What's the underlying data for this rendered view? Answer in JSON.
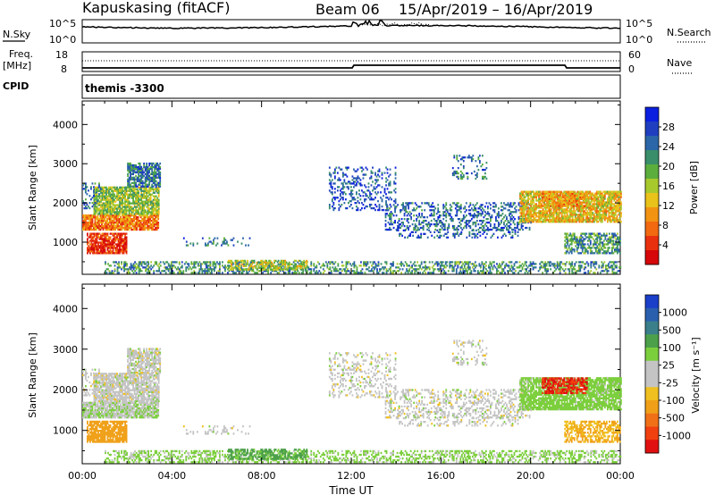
{
  "header": {
    "station": "Kapuskasing (fitACF)",
    "beam": "Beam 06",
    "date_range": "15/Apr/2019 – 16/Apr/2019"
  },
  "scan_panel": {
    "left_label": "N.Sky",
    "left_ticks": [
      "10^5",
      "10^0"
    ],
    "right_label": "N.Search",
    "right_ticks": [
      "10^5",
      "10^0"
    ]
  },
  "freq_panel": {
    "left_label_1": "Freq.",
    "left_label_2": "[MHz]",
    "left_ticks": [
      "18",
      "8"
    ],
    "right_label": "Nave",
    "right_ticks": [
      "60",
      "0"
    ],
    "cpid_label": "CPID",
    "cpid_text": "themis -3300"
  },
  "chart_data": [
    {
      "type": "heatmap",
      "name": "power",
      "ylabel": "Slant Range [km]",
      "yticks": [
        1000,
        2000,
        3000,
        4000
      ],
      "ylim": [
        180,
        4600
      ],
      "xlim": [
        0,
        24
      ],
      "colorbar": {
        "label": "Power [dB]",
        "tick_labels": [
          "4",
          "8",
          "12",
          "16",
          "20",
          "24",
          "28"
        ],
        "colors": [
          "#0b1fe0",
          "#1f3fc0",
          "#2b66a8",
          "#3a8f6a",
          "#5cae3c",
          "#a8c92c",
          "#e9c21a",
          "#f29312",
          "#f26910",
          "#e8300e",
          "#d6080a"
        ]
      }
    },
    {
      "type": "heatmap",
      "name": "velocity",
      "ylabel": "Slant Range [km]",
      "yticks": [
        1000,
        2000,
        3000,
        4000
      ],
      "ylim": [
        180,
        4600
      ],
      "xlim": [
        0,
        24
      ],
      "xlabel": "Time UT",
      "xtick_labels": [
        "00:00",
        "04:00",
        "08:00",
        "12:00",
        "16:00",
        "20:00",
        "00:00"
      ],
      "colorbar": {
        "label": "Velocity [m s⁻¹]",
        "tick_labels": [
          "1000",
          "500",
          "100",
          "25",
          "-25",
          "-100",
          "-500",
          "-1000"
        ],
        "colors": [
          "#1a3fc8",
          "#2a5fae",
          "#3a7f8a",
          "#4ca04a",
          "#7ccf3c",
          "#c4c4c4",
          "#c4c4c4",
          "#f0c020",
          "#f0a018",
          "#f07018",
          "#f04010",
          "#e01010"
        ]
      }
    }
  ],
  "regions": [
    {
      "t0": 0.0,
      "t1": 3.4,
      "r0": 1300,
      "r1": 1700,
      "p": 22,
      "v": 20,
      "d": 0.9
    },
    {
      "t0": 0.5,
      "t1": 3.4,
      "r0": 1700,
      "r1": 2400,
      "p": 14,
      "v": 0,
      "d": 0.8
    },
    {
      "t0": 2.0,
      "t1": 3.5,
      "r0": 2400,
      "r1": 3000,
      "p": 8,
      "v": 0,
      "d": 0.75
    },
    {
      "t0": 0.2,
      "t1": 2.0,
      "r0": 700,
      "r1": 1200,
      "p": 26,
      "v": -250,
      "d": 0.85
    },
    {
      "t0": 0.0,
      "t1": 0.8,
      "r0": 1800,
      "r1": 2500,
      "p": 8,
      "v": 0,
      "d": 0.25
    },
    {
      "t0": 1.0,
      "t1": 24.0,
      "r0": 200,
      "r1": 500,
      "p": 10,
      "v": 40,
      "d": 0.45
    },
    {
      "t0": 6.5,
      "t1": 10.0,
      "r0": 280,
      "r1": 520,
      "p": 15,
      "v": 120,
      "d": 0.5
    },
    {
      "t0": 4.5,
      "t1": 7.5,
      "r0": 900,
      "r1": 1100,
      "p": 8,
      "v": 0,
      "d": 0.2
    },
    {
      "t0": 11.0,
      "t1": 14.0,
      "r0": 1800,
      "r1": 2900,
      "p": 6,
      "v": 0,
      "d": 0.25
    },
    {
      "t0": 13.5,
      "t1": 20.0,
      "r0": 1300,
      "r1": 2000,
      "p": 7,
      "v": 0,
      "d": 0.35
    },
    {
      "t0": 14.0,
      "t1": 19.5,
      "r0": 1100,
      "r1": 1300,
      "p": 6,
      "v": 0,
      "d": 0.25
    },
    {
      "t0": 19.5,
      "t1": 24.0,
      "r0": 1500,
      "r1": 2300,
      "p": 18,
      "v": 50,
      "d": 0.8
    },
    {
      "t0": 20.5,
      "t1": 22.5,
      "r0": 1900,
      "r1": 2300,
      "p": 20,
      "v": -700,
      "d": 0.7
    },
    {
      "t0": 21.5,
      "t1": 24.0,
      "r0": 700,
      "r1": 1200,
      "p": 10,
      "v": -100,
      "d": 0.6
    },
    {
      "t0": 16.5,
      "t1": 18.0,
      "r0": 2600,
      "r1": 3200,
      "p": 8,
      "v": 0,
      "d": 0.2
    }
  ]
}
